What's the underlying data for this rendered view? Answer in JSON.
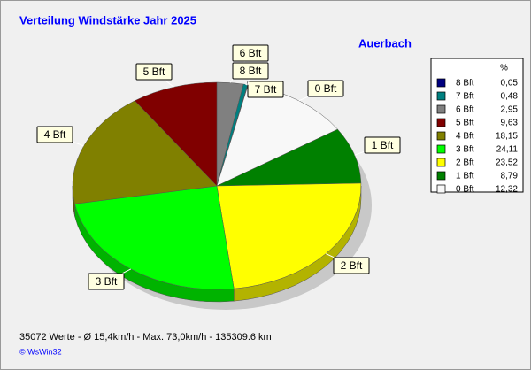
{
  "chart_data": {
    "type": "pie",
    "title": "Verteilung Windstärke  Jahr 2025",
    "subtitle": "Auerbach",
    "legend_title": "%",
    "categories": [
      "8 Bft",
      "7 Bft",
      "6 Bft",
      "5 Bft",
      "4 Bft",
      "3 Bft",
      "2 Bft",
      "1 Bft",
      "0 Bft"
    ],
    "values": [
      0.05,
      0.48,
      2.95,
      9.63,
      18.15,
      24.11,
      23.52,
      8.79,
      12.32
    ],
    "value_labels": [
      "0,05",
      "0,48",
      "2,95",
      "9,63",
      "18,15",
      "24,11",
      "23,52",
      "8,79",
      "12,32"
    ],
    "colors": [
      "#000080",
      "#008080",
      "#808080",
      "#800000",
      "#808000",
      "#00ff00",
      "#ffff00",
      "#008000",
      "#f8f8f8"
    ],
    "footer": "35072 Werte   -   Ø 15,4km/h  -  Max. 73,0km/h  -   135309.6 km",
    "credit": "© WsWin32"
  }
}
